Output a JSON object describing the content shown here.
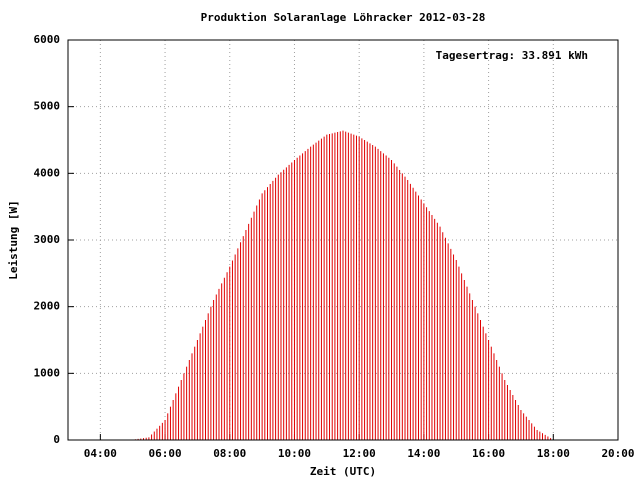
{
  "chart_data": {
    "type": "impulse",
    "title": "Produktion Solaranlage Löhracker 2012-03-28",
    "xlabel": "Zeit (UTC)",
    "ylabel": "Leistung [W]",
    "annotation": "Tagesertrag: 33.891 kWh",
    "color": "#e00000",
    "grid": true,
    "xlim": [
      "03:00",
      "20:00"
    ],
    "xticks": [
      "04:00",
      "06:00",
      "08:00",
      "10:00",
      "12:00",
      "14:00",
      "16:00",
      "18:00",
      "20:00"
    ],
    "ylim": [
      0,
      6000
    ],
    "yticks": [
      0,
      1000,
      2000,
      3000,
      4000,
      5000,
      6000
    ],
    "x": [
      "05:00",
      "05:05",
      "05:10",
      "05:15",
      "05:20",
      "05:25",
      "05:30",
      "05:35",
      "05:40",
      "05:45",
      "05:50",
      "05:55",
      "06:00",
      "06:05",
      "06:10",
      "06:15",
      "06:20",
      "06:25",
      "06:30",
      "06:35",
      "06:40",
      "06:45",
      "06:50",
      "06:55",
      "07:00",
      "07:05",
      "07:10",
      "07:15",
      "07:20",
      "07:25",
      "07:30",
      "07:35",
      "07:40",
      "07:45",
      "07:50",
      "07:55",
      "08:00",
      "08:05",
      "08:10",
      "08:15",
      "08:20",
      "08:25",
      "08:30",
      "08:35",
      "08:40",
      "08:45",
      "08:50",
      "08:55",
      "09:00",
      "09:05",
      "09:10",
      "09:15",
      "09:20",
      "09:25",
      "09:30",
      "09:35",
      "09:40",
      "09:45",
      "09:50",
      "09:55",
      "10:00",
      "10:05",
      "10:10",
      "10:15",
      "10:20",
      "10:25",
      "10:30",
      "10:35",
      "10:40",
      "10:45",
      "10:50",
      "10:55",
      "11:00",
      "11:05",
      "11:10",
      "11:15",
      "11:20",
      "11:25",
      "11:30",
      "11:35",
      "11:40",
      "11:45",
      "11:50",
      "11:55",
      "12:00",
      "12:05",
      "12:10",
      "12:15",
      "12:20",
      "12:25",
      "12:30",
      "12:35",
      "12:40",
      "12:45",
      "12:50",
      "12:55",
      "13:00",
      "13:05",
      "13:10",
      "13:15",
      "13:20",
      "13:25",
      "13:30",
      "13:35",
      "13:40",
      "13:45",
      "13:50",
      "13:55",
      "14:00",
      "14:05",
      "14:10",
      "14:15",
      "14:20",
      "14:25",
      "14:30",
      "14:35",
      "14:40",
      "14:45",
      "14:50",
      "14:55",
      "15:00",
      "15:05",
      "15:10",
      "15:15",
      "15:20",
      "15:25",
      "15:30",
      "15:35",
      "15:40",
      "15:45",
      "15:50",
      "15:55",
      "16:00",
      "16:05",
      "16:10",
      "16:15",
      "16:20",
      "16:25",
      "16:30",
      "16:35",
      "16:40",
      "16:45",
      "16:50",
      "16:55",
      "17:00",
      "17:05",
      "17:10",
      "17:15",
      "17:20",
      "17:25",
      "17:30",
      "17:35",
      "17:40",
      "17:45",
      "17:50",
      "17:55",
      "18:00"
    ],
    "values": [
      5,
      11,
      17,
      22,
      28,
      34,
      40,
      83,
      127,
      170,
      213,
      257,
      300,
      400,
      500,
      600,
      700,
      800,
      900,
      1000,
      1100,
      1200,
      1300,
      1400,
      1500,
      1600,
      1700,
      1800,
      1900,
      2000,
      2100,
      2183,
      2267,
      2350,
      2433,
      2517,
      2600,
      2692,
      2783,
      2875,
      2967,
      3058,
      3150,
      3242,
      3333,
      3425,
      3517,
      3608,
      3700,
      3747,
      3793,
      3840,
      3887,
      3933,
      3980,
      4017,
      4053,
      4090,
      4127,
      4163,
      4200,
      4233,
      4267,
      4300,
      4333,
      4367,
      4400,
      4430,
      4460,
      4490,
      4520,
      4550,
      4580,
      4590,
      4600,
      4610,
      4620,
      4630,
      4640,
      4625,
      4610,
      4595,
      4580,
      4565,
      4550,
      4525,
      4500,
      4475,
      4450,
      4425,
      4400,
      4367,
      4333,
      4300,
      4267,
      4233,
      4200,
      4150,
      4100,
      4050,
      4000,
      3950,
      3900,
      3842,
      3783,
      3725,
      3667,
      3608,
      3550,
      3492,
      3433,
      3375,
      3317,
      3258,
      3200,
      3117,
      3033,
      2950,
      2867,
      2783,
      2700,
      2600,
      2500,
      2400,
      2300,
      2200,
      2100,
      2000,
      1900,
      1800,
      1700,
      1600,
      1500,
      1400,
      1300,
      1200,
      1100,
      1000,
      900,
      825,
      750,
      675,
      600,
      525,
      450,
      400,
      350,
      300,
      250,
      200,
      150,
      126,
      102,
      77,
      53,
      29,
      5
    ]
  }
}
